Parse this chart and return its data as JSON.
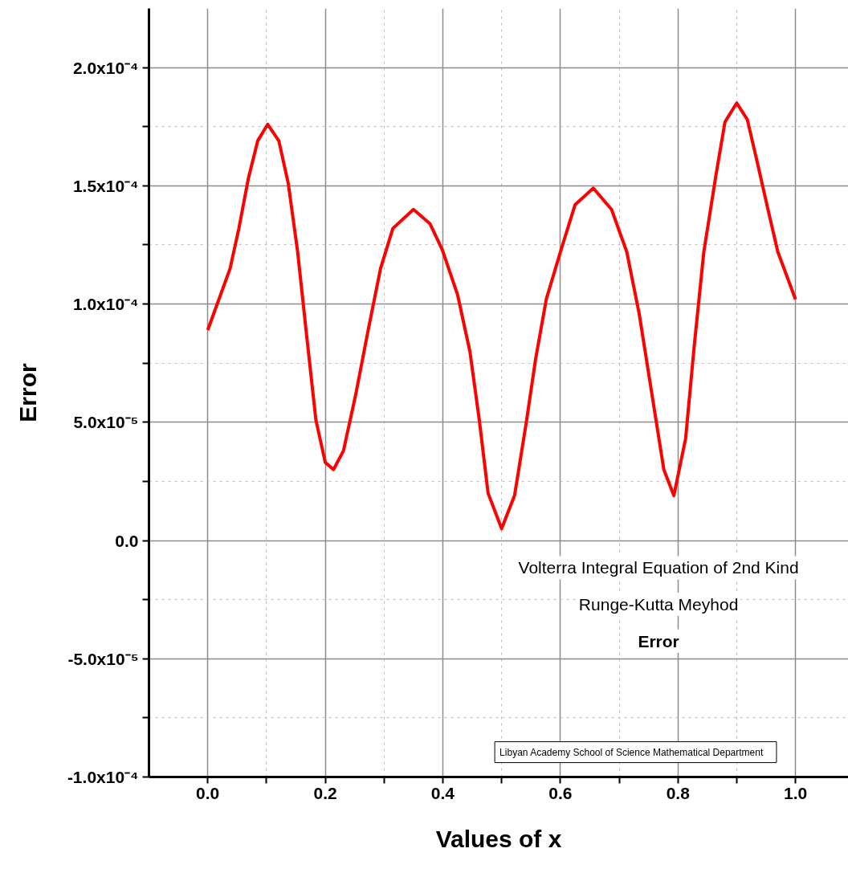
{
  "chart_data": {
    "type": "line",
    "xlabel": "Values of x",
    "ylabel": "Error",
    "x": [
      0,
      0.022,
      0.038,
      0.053,
      0.069,
      0.085,
      0.102,
      0.121,
      0.137,
      0.153,
      0.169,
      0.184,
      0.2,
      0.214,
      0.231,
      0.252,
      0.273,
      0.294,
      0.315,
      0.35,
      0.378,
      0.399,
      0.425,
      0.446,
      0.462,
      0.477,
      0.5,
      0.522,
      0.542,
      0.558,
      0.576,
      0.6,
      0.625,
      0.656,
      0.687,
      0.713,
      0.734,
      0.755,
      0.776,
      0.793,
      0.813,
      0.828,
      0.844,
      0.865,
      0.88,
      0.9,
      0.918,
      0.934,
      0.955,
      0.97,
      1.0
    ],
    "series": [
      {
        "color": "#ff0000",
        "values": [
          8.9e-05,
          0.000104,
          0.000115,
          0.000132,
          0.000153,
          0.000169,
          0.000176,
          0.000169,
          0.000151,
          0.000122,
          8.5e-05,
          5.1e-05,
          3.3e-05,
          3e-05,
          3.8e-05,
          6.2e-05,
          8.9e-05,
          0.000115,
          0.000132,
          0.00014,
          0.000134,
          0.000123,
          0.000104,
          8e-05,
          5.1e-05,
          2e-05,
          5e-06,
          1.9e-05,
          5e-05,
          7.7e-05,
          0.000102,
          0.000122,
          0.000142,
          0.000149,
          0.00014,
          0.000122,
          9.6e-05,
          6.3e-05,
          3e-05,
          1.9e-05,
          4.3e-05,
          8.3e-05,
          0.000122,
          0.000155,
          0.000177,
          0.000185,
          0.000178,
          0.000161,
          0.000138,
          0.000122,
          0.000102
        ]
      }
    ],
    "xlim": [
      -0.1,
      1.09
    ],
    "ylim": [
      -0.0001,
      0.000225
    ],
    "xticks": [
      {
        "value": 0,
        "label": "0.0"
      },
      {
        "value": 0.1,
        "label": null
      },
      {
        "value": 0.2,
        "label": "0.2"
      },
      {
        "value": 0.3,
        "label": null
      },
      {
        "value": 0.4,
        "label": "0.4"
      },
      {
        "value": 0.5,
        "label": null
      },
      {
        "value": 0.6,
        "label": "0.6"
      },
      {
        "value": 0.7,
        "label": null
      },
      {
        "value": 0.8,
        "label": "0.8"
      },
      {
        "value": 0.9,
        "label": null
      },
      {
        "value": 1,
        "label": "1.0"
      }
    ],
    "yticks": [
      {
        "value": -0.0001,
        "label": "-1.0x10⁻⁴"
      },
      {
        "value": -7.5e-05,
        "label": null
      },
      {
        "value": -5e-05,
        "label": "-5.0x10⁻⁵"
      },
      {
        "value": -2.5e-05,
        "label": null
      },
      {
        "value": 0,
        "label": "0.0"
      },
      {
        "value": 2.5e-05,
        "label": null
      },
      {
        "value": 5e-05,
        "label": "5.0x10⁻⁵"
      },
      {
        "value": 7.5e-05,
        "label": null
      },
      {
        "value": 0.0001,
        "label": "1.0x10⁻⁴"
      },
      {
        "value": 0.000125,
        "label": null
      },
      {
        "value": 0.00015,
        "label": "1.5x10⁻⁴"
      },
      {
        "value": 0.000175,
        "label": null
      },
      {
        "value": 0.0002,
        "label": "2.0x10⁻⁴"
      }
    ],
    "grid": true,
    "line_style": "solid",
    "annotations": [
      "Volterra Integral Equation of 2nd Kind",
      "Runge-Kutta Meyhod",
      "Error",
      "Libyan Academy   School of Science  Mathematical Department"
    ]
  }
}
